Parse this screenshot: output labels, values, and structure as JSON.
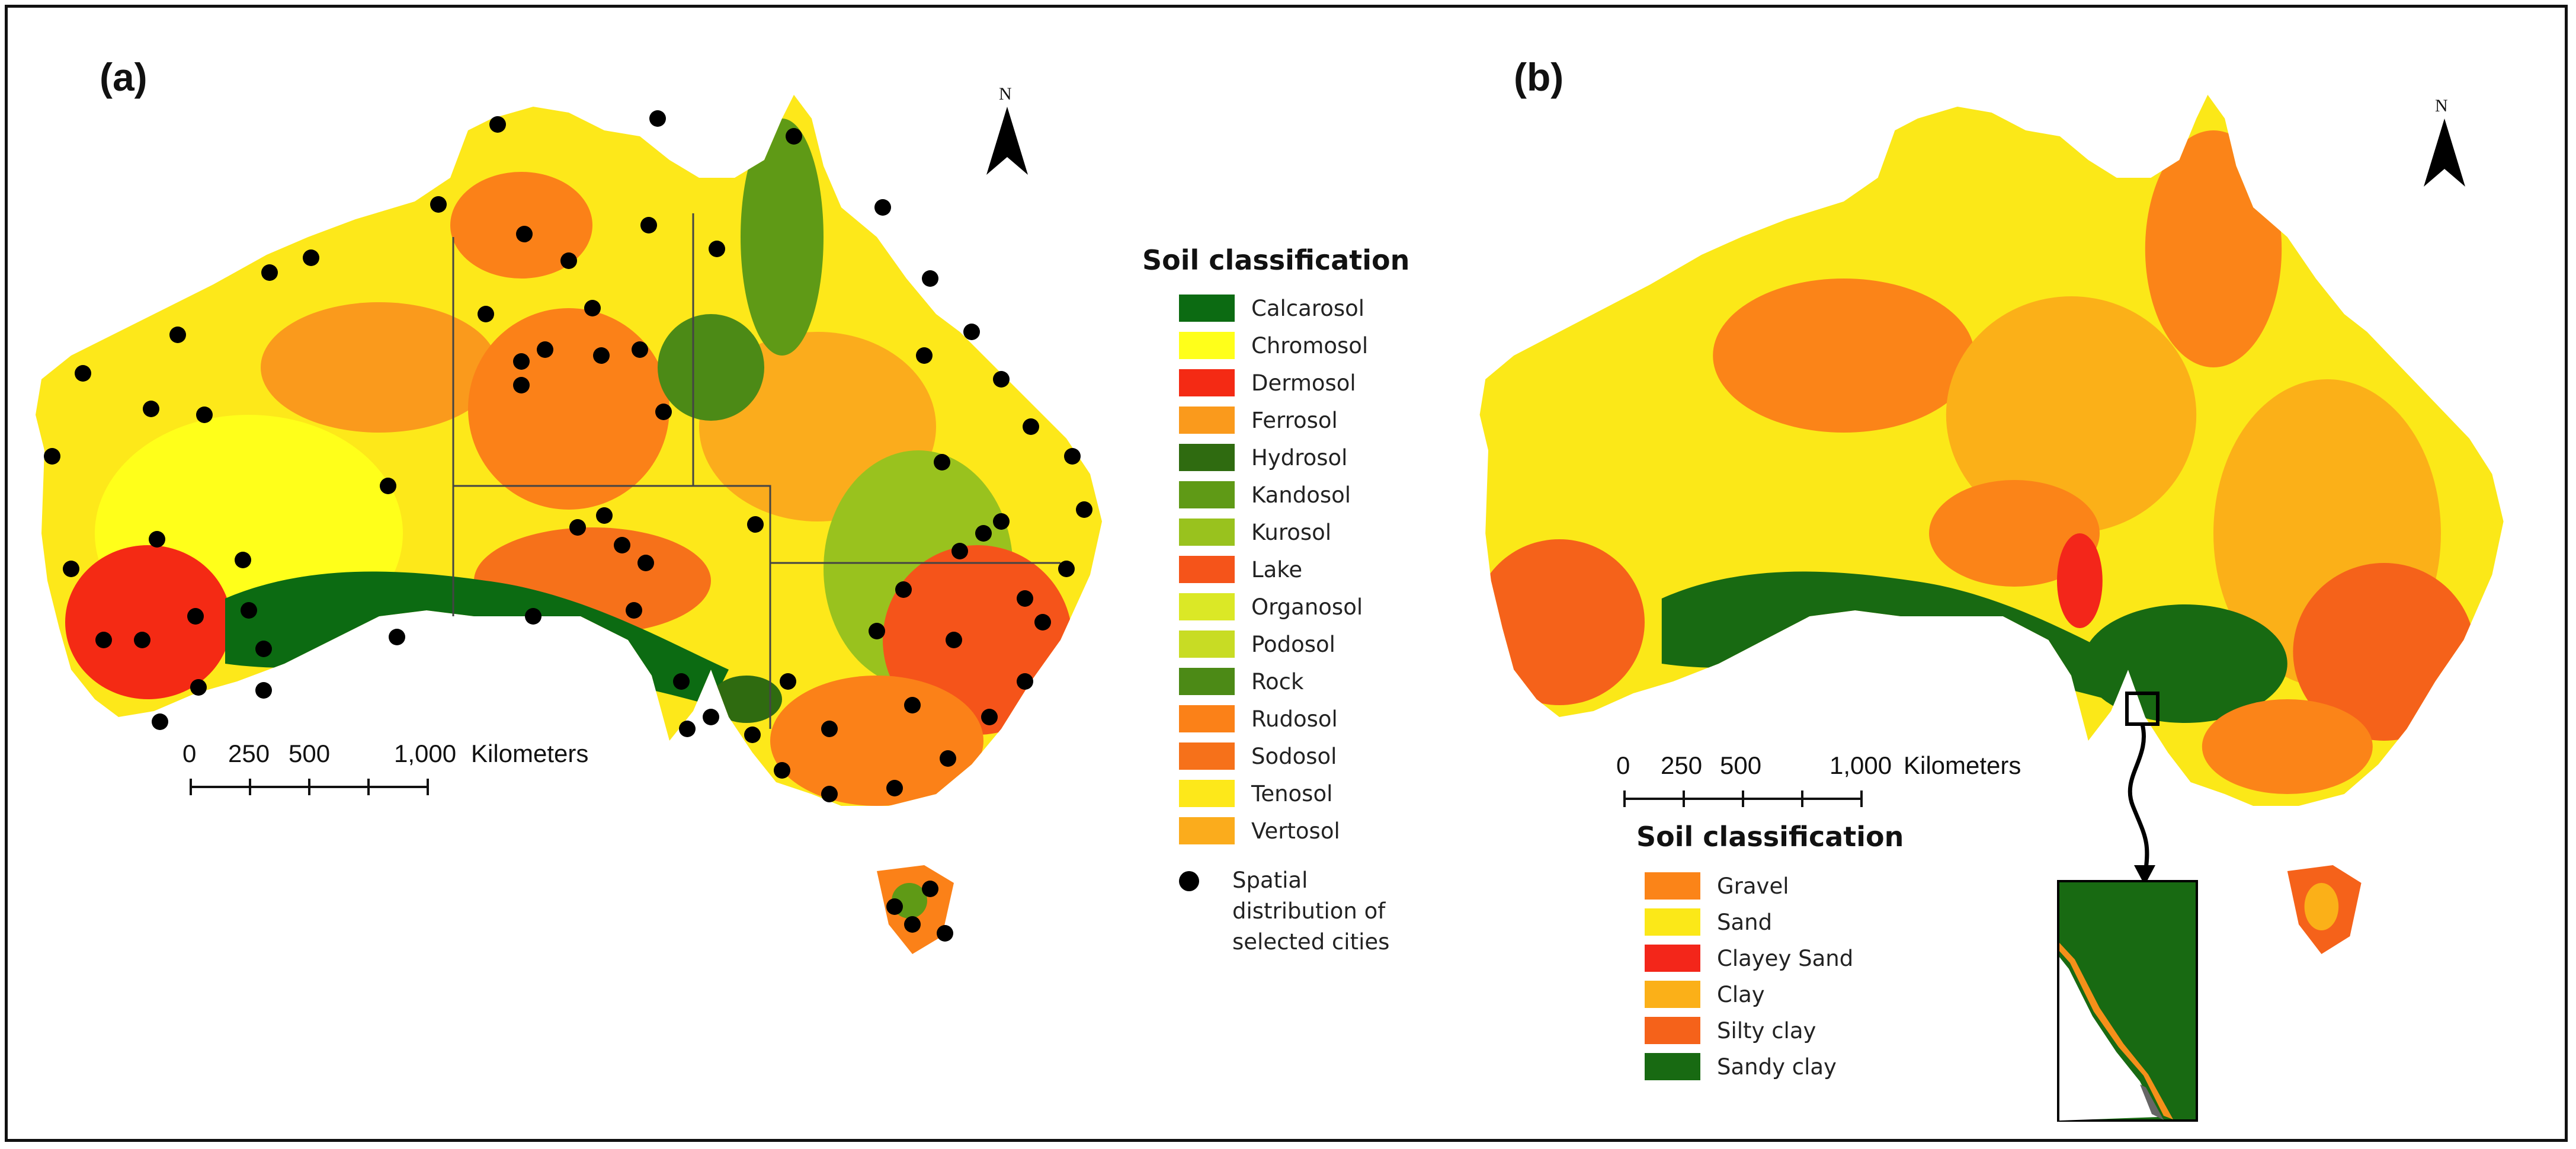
{
  "panel_a": {
    "label": "(a)",
    "legend_title": "Soil classification",
    "legend": [
      {
        "label": "Calcarosol",
        "color": "#0c6b12"
      },
      {
        "label": "Chromosol",
        "color": "#ffff1a"
      },
      {
        "label": "Dermosol",
        "color": "#f42a14"
      },
      {
        "label": "Ferrosol",
        "color": "#fa9a1c"
      },
      {
        "label": "Hydrosol",
        "color": "#2f6b10"
      },
      {
        "label": "Kandosol",
        "color": "#5f9a16"
      },
      {
        "label": "Kurosol",
        "color": "#99c21e"
      },
      {
        "label": "Lake",
        "color": "#f5541a"
      },
      {
        "label": "Organosol",
        "color": "#dbe826"
      },
      {
        "label": "Podosol",
        "color": "#c8dc24"
      },
      {
        "label": "Rock",
        "color": "#4c8a16"
      },
      {
        "label": "Rudosol",
        "color": "#fb8118"
      },
      {
        "label": "Sodosol",
        "color": "#f6711a"
      },
      {
        "label": "Tenosol",
        "color": "#fde81a"
      },
      {
        "label": "Vertosol",
        "color": "#fbac1c"
      }
    ],
    "cities_label": "Spatial distribution of selected cities",
    "cities_lines": [
      "Spatial",
      "distribution of",
      "selected cities"
    ],
    "scale_labels": [
      "0",
      "250",
      "500",
      "1,000",
      "Kilometers"
    ],
    "north": "N"
  },
  "panel_b": {
    "label": "(b)",
    "legend_title": "Soil classification",
    "legend": [
      {
        "label": "Gravel",
        "color": "#fb8418"
      },
      {
        "label": "Sand",
        "color": "#fbe818"
      },
      {
        "label": "Clayey Sand",
        "color": "#f3261a"
      },
      {
        "label": "Clay",
        "color": "#fbb018"
      },
      {
        "label": "Silty clay",
        "color": "#f5621a"
      },
      {
        "label": "Sandy clay",
        "color": "#186a12"
      }
    ],
    "scale_labels": [
      "0",
      "250",
      "500",
      "1,000",
      "Kilometers"
    ],
    "north": "N"
  }
}
